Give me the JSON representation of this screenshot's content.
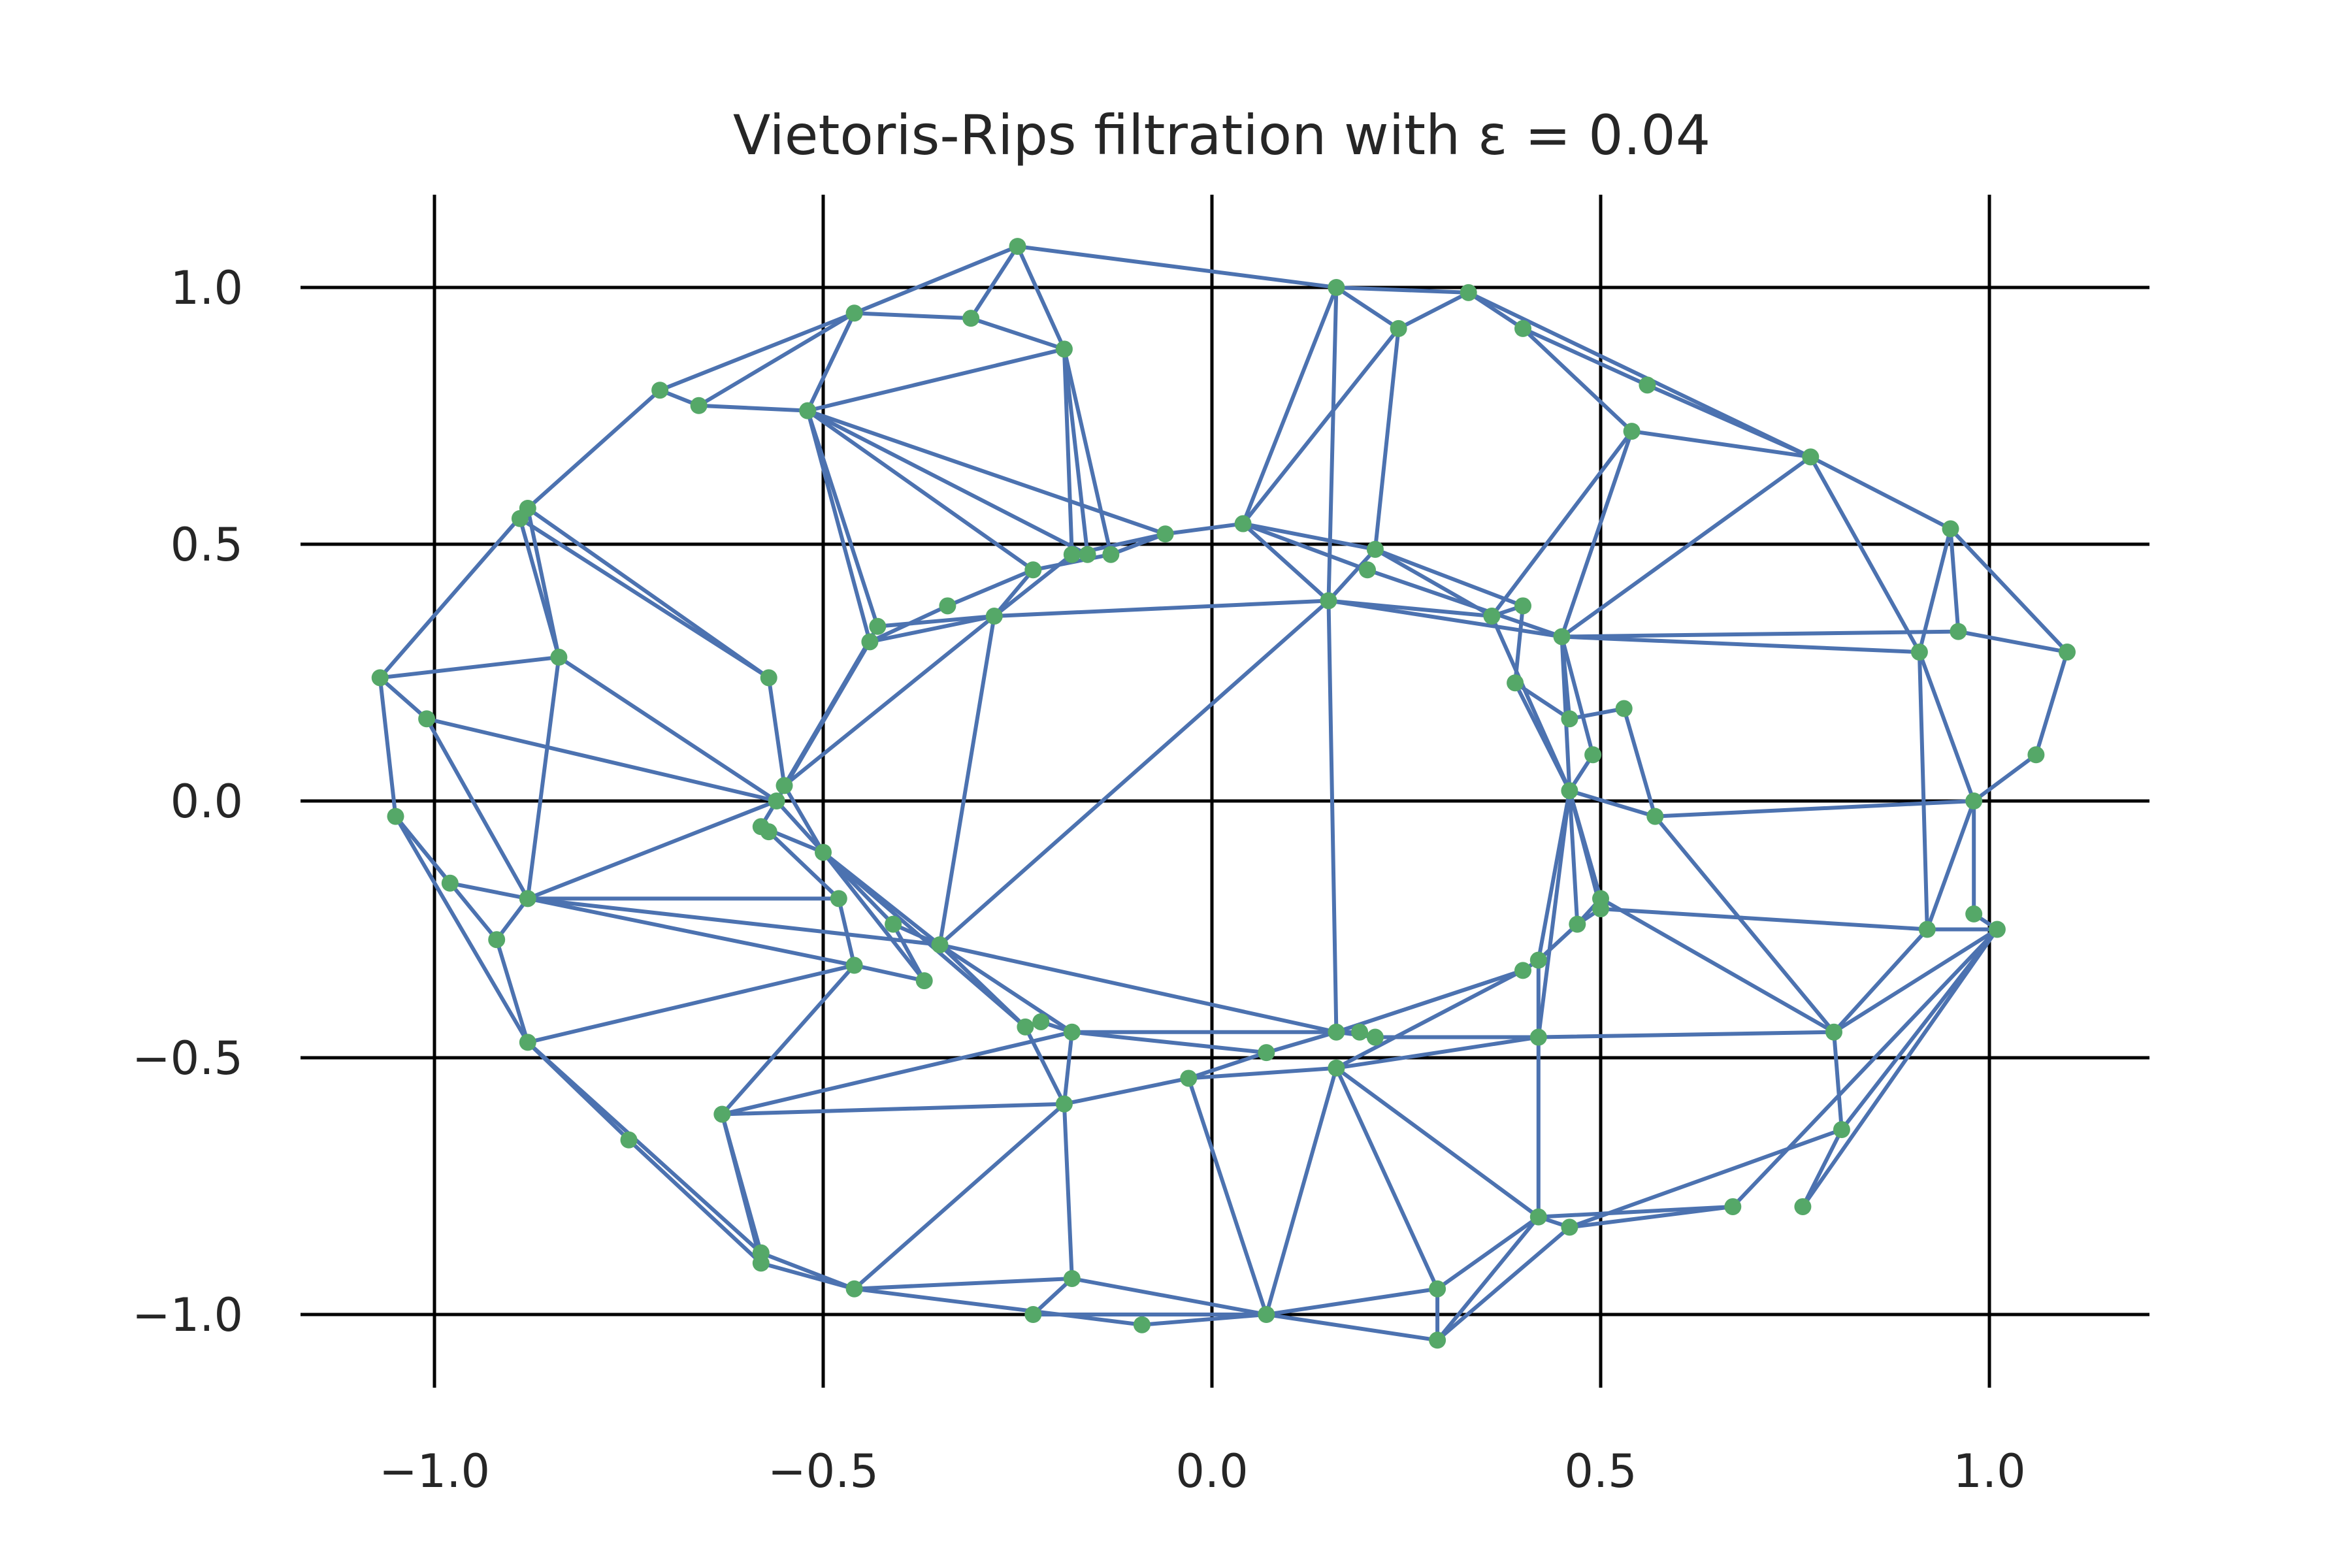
{
  "chart_data": {
    "type": "scatter",
    "title": "Vietoris-Rips filtration with ε = 0.04",
    "xlim": [
      -1.2,
      1.2
    ],
    "ylim": [
      -1.15,
      1.15
    ],
    "xticks": [
      -1.0,
      -0.5,
      0.0,
      0.5,
      1.0
    ],
    "yticks": [
      1.0,
      0.5,
      0.0,
      -0.5,
      -1.0
    ],
    "xtick_labels": [
      "−1.0",
      "−0.5",
      "0.0",
      "0.5",
      "1.0"
    ],
    "ytick_labels": [
      "1.0",
      "0.5",
      "0.0",
      "−0.5",
      "−1.0"
    ],
    "grid": true,
    "colors": {
      "edges": "#4c72b0",
      "vertices": "#55a868",
      "grid": "#000000",
      "text": "#262626"
    },
    "points": [
      [
        -0.25,
        1.08
      ],
      [
        -0.46,
        0.95
      ],
      [
        -0.31,
        0.94
      ],
      [
        -0.19,
        0.88
      ],
      [
        -0.71,
        0.8
      ],
      [
        -0.66,
        0.77
      ],
      [
        -0.52,
        0.76
      ],
      [
        0.16,
        1.0
      ],
      [
        0.33,
        0.99
      ],
      [
        0.24,
        0.92
      ],
      [
        0.4,
        0.92
      ],
      [
        0.56,
        0.81
      ],
      [
        0.54,
        0.72
      ],
      [
        0.77,
        0.67
      ],
      [
        0.95,
        0.53
      ],
      [
        -0.88,
        0.57
      ],
      [
        -0.89,
        0.55
      ],
      [
        -0.06,
        0.52
      ],
      [
        0.04,
        0.54
      ],
      [
        -0.13,
        0.48
      ],
      [
        -0.16,
        0.48
      ],
      [
        -0.18,
        0.48
      ],
      [
        -0.23,
        0.45
      ],
      [
        0.21,
        0.49
      ],
      [
        0.2,
        0.45
      ],
      [
        -0.34,
        0.38
      ],
      [
        -0.28,
        0.36
      ],
      [
        0.15,
        0.39
      ],
      [
        0.36,
        0.36
      ],
      [
        0.4,
        0.38
      ],
      [
        0.45,
        0.32
      ],
      [
        -0.43,
        0.34
      ],
      [
        -0.44,
        0.31
      ],
      [
        0.96,
        0.33
      ],
      [
        1.1,
        0.29
      ],
      [
        0.91,
        0.29
      ],
      [
        -0.84,
        0.28
      ],
      [
        -1.07,
        0.24
      ],
      [
        -0.57,
        0.24
      ],
      [
        0.39,
        0.23
      ],
      [
        -1.01,
        0.16
      ],
      [
        0.46,
        0.16
      ],
      [
        0.53,
        0.18
      ],
      [
        0.49,
        0.09
      ],
      [
        1.06,
        0.09
      ],
      [
        -0.55,
        0.03
      ],
      [
        -0.56,
        0.0
      ],
      [
        0.46,
        0.02
      ],
      [
        0.57,
        -0.03
      ],
      [
        0.98,
        0.0
      ],
      [
        -1.05,
        -0.03
      ],
      [
        -0.58,
        -0.05
      ],
      [
        -0.57,
        -0.06
      ],
      [
        -0.5,
        -0.1
      ],
      [
        -0.98,
        -0.16
      ],
      [
        -0.88,
        -0.19
      ],
      [
        -0.48,
        -0.19
      ],
      [
        0.5,
        -0.19
      ],
      [
        0.5,
        -0.21
      ],
      [
        -0.41,
        -0.24
      ],
      [
        0.47,
        -0.24
      ],
      [
        0.92,
        -0.25
      ],
      [
        0.98,
        -0.22
      ],
      [
        1.01,
        -0.25
      ],
      [
        -0.92,
        -0.27
      ],
      [
        -0.35,
        -0.28
      ],
      [
        0.42,
        -0.31
      ],
      [
        0.4,
        -0.33
      ],
      [
        -0.46,
        -0.32
      ],
      [
        -0.37,
        -0.35
      ],
      [
        -0.88,
        -0.47
      ],
      [
        -0.24,
        -0.44
      ],
      [
        -0.22,
        -0.43
      ],
      [
        -0.18,
        -0.45
      ],
      [
        0.16,
        -0.45
      ],
      [
        0.19,
        -0.45
      ],
      [
        0.21,
        -0.46
      ],
      [
        0.42,
        -0.46
      ],
      [
        0.8,
        -0.45
      ],
      [
        0.07,
        -0.49
      ],
      [
        0.16,
        -0.52
      ],
      [
        -0.03,
        -0.54
      ],
      [
        -0.63,
        -0.61
      ],
      [
        -0.19,
        -0.59
      ],
      [
        -0.75,
        -0.66
      ],
      [
        0.81,
        -0.64
      ],
      [
        -0.58,
        -0.88
      ],
      [
        -0.58,
        -0.9
      ],
      [
        -0.46,
        -0.95
      ],
      [
        -0.18,
        -0.93
      ],
      [
        -0.23,
        -1.0
      ],
      [
        -0.09,
        -1.02
      ],
      [
        0.07,
        -1.0
      ],
      [
        0.29,
        -0.95
      ],
      [
        0.29,
        -1.05
      ],
      [
        0.42,
        -0.81
      ],
      [
        0.46,
        -0.83
      ],
      [
        0.67,
        -0.79
      ],
      [
        0.76,
        -0.79
      ]
    ],
    "edges": [
      [
        0,
        1
      ],
      [
        0,
        2
      ],
      [
        0,
        3
      ],
      [
        0,
        7
      ],
      [
        1,
        2
      ],
      [
        1,
        4
      ],
      [
        1,
        5
      ],
      [
        1,
        6
      ],
      [
        2,
        3
      ],
      [
        3,
        6
      ],
      [
        3,
        19
      ],
      [
        3,
        20
      ],
      [
        3,
        21
      ],
      [
        4,
        5
      ],
      [
        4,
        15
      ],
      [
        5,
        6
      ],
      [
        6,
        31
      ],
      [
        6,
        32
      ],
      [
        6,
        20
      ],
      [
        6,
        17
      ],
      [
        6,
        22
      ],
      [
        6,
        1
      ],
      [
        7,
        8
      ],
      [
        7,
        9
      ],
      [
        7,
        27
      ],
      [
        7,
        18
      ],
      [
        8,
        9
      ],
      [
        8,
        10
      ],
      [
        8,
        13
      ],
      [
        9,
        23
      ],
      [
        9,
        18
      ],
      [
        10,
        11
      ],
      [
        10,
        12
      ],
      [
        11,
        13
      ],
      [
        12,
        28
      ],
      [
        12,
        30
      ],
      [
        12,
        13
      ],
      [
        13,
        35
      ],
      [
        13,
        30
      ],
      [
        13,
        14
      ],
      [
        14,
        33
      ],
      [
        14,
        35
      ],
      [
        14,
        34
      ],
      [
        15,
        16
      ],
      [
        15,
        36
      ],
      [
        15,
        38
      ],
      [
        15,
        37
      ],
      [
        16,
        36
      ],
      [
        36,
        37
      ],
      [
        36,
        55
      ],
      [
        36,
        46
      ],
      [
        37,
        40
      ],
      [
        37,
        50
      ],
      [
        38,
        45
      ],
      [
        38,
        16
      ],
      [
        40,
        46
      ],
      [
        40,
        55
      ],
      [
        18,
        17
      ],
      [
        18,
        27
      ],
      [
        18,
        24
      ],
      [
        18,
        23
      ],
      [
        17,
        21
      ],
      [
        17,
        19
      ],
      [
        19,
        22
      ],
      [
        22,
        25
      ],
      [
        22,
        26
      ],
      [
        25,
        32
      ],
      [
        26,
        32
      ],
      [
        26,
        31
      ],
      [
        26,
        27
      ],
      [
        26,
        45
      ],
      [
        26,
        65
      ],
      [
        26,
        21
      ],
      [
        31,
        45
      ],
      [
        32,
        46
      ],
      [
        27,
        23
      ],
      [
        27,
        28
      ],
      [
        27,
        30
      ],
      [
        27,
        74
      ],
      [
        27,
        65
      ],
      [
        23,
        29
      ],
      [
        23,
        28
      ],
      [
        24,
        30
      ],
      [
        28,
        29
      ],
      [
        28,
        47
      ],
      [
        29,
        39
      ],
      [
        30,
        41
      ],
      [
        30,
        35
      ],
      [
        30,
        33
      ],
      [
        30,
        47
      ],
      [
        30,
        43
      ],
      [
        39,
        41
      ],
      [
        39,
        47
      ],
      [
        41,
        42
      ],
      [
        42,
        48
      ],
      [
        43,
        47
      ],
      [
        47,
        48
      ],
      [
        47,
        57
      ],
      [
        47,
        58
      ],
      [
        47,
        60
      ],
      [
        47,
        66
      ],
      [
        47,
        77
      ],
      [
        48,
        49
      ],
      [
        48,
        78
      ],
      [
        49,
        44
      ],
      [
        49,
        61
      ],
      [
        49,
        62
      ],
      [
        44,
        34
      ],
      [
        33,
        34
      ],
      [
        35,
        49
      ],
      [
        35,
        61
      ],
      [
        45,
        53
      ],
      [
        46,
        53
      ],
      [
        46,
        55
      ],
      [
        46,
        51
      ],
      [
        51,
        53
      ],
      [
        52,
        56
      ],
      [
        53,
        59
      ],
      [
        53,
        65
      ],
      [
        53,
        71
      ],
      [
        55,
        54
      ],
      [
        55,
        64
      ],
      [
        55,
        68
      ],
      [
        55,
        56
      ],
      [
        55,
        65
      ],
      [
        54,
        50
      ],
      [
        50,
        64
      ],
      [
        50,
        70
      ],
      [
        64,
        70
      ],
      [
        70,
        68
      ],
      [
        70,
        84
      ],
      [
        70,
        86
      ],
      [
        56,
        68
      ],
      [
        59,
        65
      ],
      [
        59,
        69
      ],
      [
        65,
        71
      ],
      [
        65,
        73
      ],
      [
        65,
        74
      ],
      [
        68,
        82
      ],
      [
        68,
        69
      ],
      [
        69,
        53
      ],
      [
        71,
        72
      ],
      [
        72,
        73
      ],
      [
        73,
        74
      ],
      [
        73,
        79
      ],
      [
        73,
        82
      ],
      [
        73,
        83
      ],
      [
        74,
        75
      ],
      [
        74,
        76
      ],
      [
        74,
        79
      ],
      [
        74,
        67
      ],
      [
        76,
        77
      ],
      [
        77,
        78
      ],
      [
        78,
        61
      ],
      [
        78,
        85
      ],
      [
        78,
        63
      ],
      [
        78,
        57
      ],
      [
        57,
        58
      ],
      [
        58,
        61
      ],
      [
        61,
        63
      ],
      [
        62,
        63
      ],
      [
        63,
        85
      ],
      [
        63,
        98
      ],
      [
        63,
        97
      ],
      [
        85,
        98
      ],
      [
        85,
        96
      ],
      [
        97,
        96
      ],
      [
        97,
        95
      ],
      [
        96,
        95
      ],
      [
        95,
        94
      ],
      [
        95,
        93
      ],
      [
        96,
        94
      ],
      [
        77,
        95
      ],
      [
        77,
        80
      ],
      [
        80,
        81
      ],
      [
        80,
        92
      ],
      [
        80,
        93
      ],
      [
        80,
        95
      ],
      [
        81,
        83
      ],
      [
        81,
        92
      ],
      [
        81,
        79
      ],
      [
        83,
        89
      ],
      [
        83,
        88
      ],
      [
        83,
        82
      ],
      [
        83,
        71
      ],
      [
        82,
        86
      ],
      [
        82,
        87
      ],
      [
        84,
        87
      ],
      [
        86,
        88
      ],
      [
        87,
        88
      ],
      [
        88,
        89
      ],
      [
        88,
        91
      ],
      [
        89,
        92
      ],
      [
        89,
        90
      ],
      [
        90,
        92
      ],
      [
        91,
        92
      ],
      [
        92,
        94
      ],
      [
        92,
        93
      ],
      [
        93,
        94
      ],
      [
        66,
        67
      ],
      [
        66,
        77
      ],
      [
        66,
        60
      ],
      [
        67,
        80
      ],
      [
        67,
        74
      ],
      [
        60,
        57
      ],
      [
        60,
        58
      ]
    ]
  }
}
